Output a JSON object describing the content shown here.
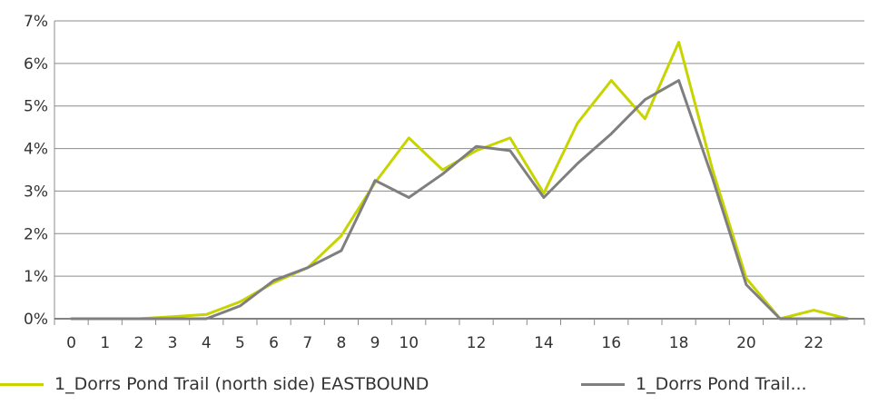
{
  "chart_data": {
    "type": "line",
    "title": "",
    "xlabel": "",
    "ylabel": "",
    "x": [
      0,
      1,
      2,
      3,
      4,
      5,
      6,
      7,
      8,
      9,
      10,
      11,
      12,
      13,
      14,
      15,
      16,
      17,
      18,
      19,
      20,
      21,
      22,
      23
    ],
    "x_tick_labels": [
      "0",
      "1",
      "2",
      "3",
      "4",
      "5",
      "6",
      "7",
      "8",
      "9",
      "10",
      "12",
      "14",
      "16",
      "18",
      "20",
      "22"
    ],
    "y_tick_labels": [
      "0%",
      "1%",
      "2%",
      "3%",
      "4%",
      "5%",
      "6%",
      "7%"
    ],
    "ylim": [
      0,
      7
    ],
    "grid": true,
    "legend_position": "bottom",
    "series": [
      {
        "name": "1_Dorrs Pond Trail (north side) EASTBOUND",
        "color": "#c8d400",
        "values": [
          0.0,
          0.0,
          0.0,
          0.05,
          0.1,
          0.4,
          0.85,
          1.2,
          1.95,
          3.2,
          4.25,
          3.5,
          3.95,
          4.25,
          2.95,
          4.6,
          5.6,
          4.7,
          6.5,
          3.5,
          0.95,
          0.0,
          0.2,
          0.0
        ]
      },
      {
        "name": "1_Dorrs Pond Trail...",
        "color": "#7f7f7f",
        "values": [
          0.0,
          0.0,
          0.0,
          0.0,
          0.0,
          0.3,
          0.9,
          1.2,
          1.6,
          3.25,
          2.85,
          3.4,
          4.05,
          3.95,
          2.85,
          3.65,
          4.35,
          5.15,
          5.6,
          3.3,
          0.8,
          0.0,
          0.0,
          0.0
        ]
      }
    ]
  }
}
